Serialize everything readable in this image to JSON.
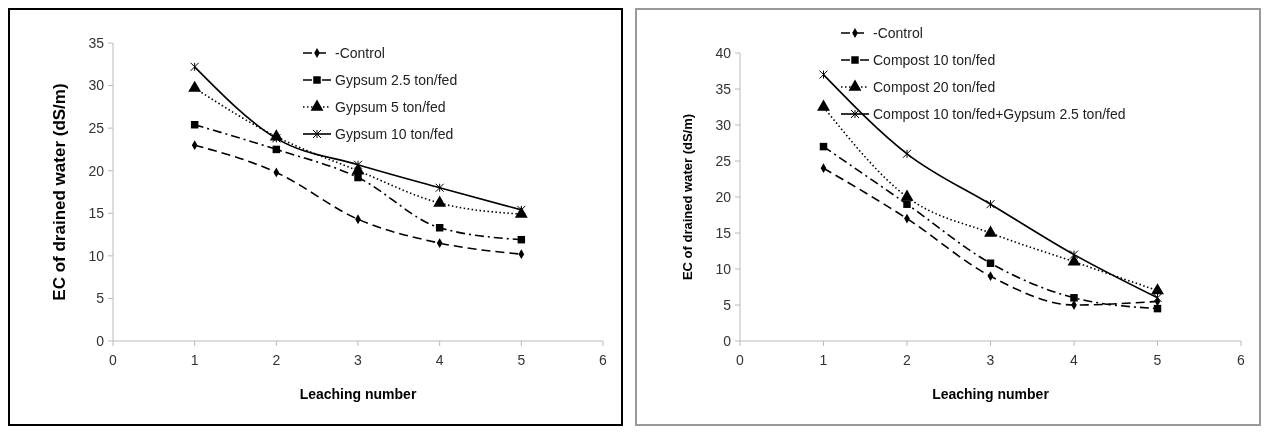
{
  "chart_data": [
    {
      "type": "line",
      "xlabel": "Leaching number",
      "ylabel": "EC of drained water (dS/m)",
      "x": [
        1,
        2,
        3,
        4,
        5
      ],
      "xlim": [
        0,
        6
      ],
      "xticks": [
        0,
        1,
        2,
        3,
        4,
        5,
        6
      ],
      "ylim": [
        0,
        35
      ],
      "yticks": [
        0,
        5,
        10,
        15,
        20,
        25,
        30,
        35
      ],
      "grid": false,
      "legend": "top right",
      "series": [
        {
          "name": "-Control",
          "color": "#000000",
          "marker": "diamond",
          "line_style": "dashed",
          "values": [
            23,
            19.8,
            14.3,
            11.5,
            10.2
          ]
        },
        {
          "name": "Gypsum 2.5 ton/fed",
          "color": "#000000",
          "marker": "square",
          "line_style": "dashdot",
          "values": [
            25.4,
            22.5,
            19.2,
            13.3,
            11.9
          ]
        },
        {
          "name": "Gypsum 5 ton/fed",
          "color": "#000000",
          "marker": "triangle",
          "line_style": "dotted",
          "values": [
            29.7,
            24,
            20,
            16.2,
            14.9
          ]
        },
        {
          "name": "Gypsum 10 ton/fed",
          "color": "#000000",
          "marker": "cross",
          "line_style": "solid",
          "values": [
            32.2,
            23.8,
            20.7,
            18,
            15.4
          ]
        }
      ]
    },
    {
      "type": "line",
      "xlabel": "Leaching number",
      "ylabel": "EC of drained water (dS/m)",
      "x": [
        1,
        2,
        3,
        4,
        5
      ],
      "xlim": [
        0,
        6
      ],
      "xticks": [
        0,
        1,
        2,
        3,
        4,
        5,
        6
      ],
      "ylim": [
        0,
        40
      ],
      "yticks": [
        0,
        5,
        10,
        15,
        20,
        25,
        30,
        35,
        40
      ],
      "grid": false,
      "legend": "top right",
      "series": [
        {
          "name": "-Control",
          "color": "#000000",
          "marker": "diamond",
          "line_style": "dashed",
          "values": [
            24,
            17,
            9,
            5,
            5.5
          ]
        },
        {
          "name": "Compost 10 ton/fed",
          "color": "#000000",
          "marker": "square",
          "line_style": "dashdot",
          "values": [
            27,
            19,
            10.8,
            6,
            4.5
          ]
        },
        {
          "name": "Compost 20 ton/fed",
          "color": "#000000",
          "marker": "triangle",
          "line_style": "dotted",
          "values": [
            32.5,
            20,
            15,
            11,
            7
          ]
        },
        {
          "name": "Compost 10 ton/fed+Gypsum 2.5 ton/fed",
          "color": "#000000",
          "marker": "cross",
          "line_style": "solid",
          "values": [
            37,
            26,
            19,
            12,
            6
          ]
        }
      ]
    }
  ]
}
